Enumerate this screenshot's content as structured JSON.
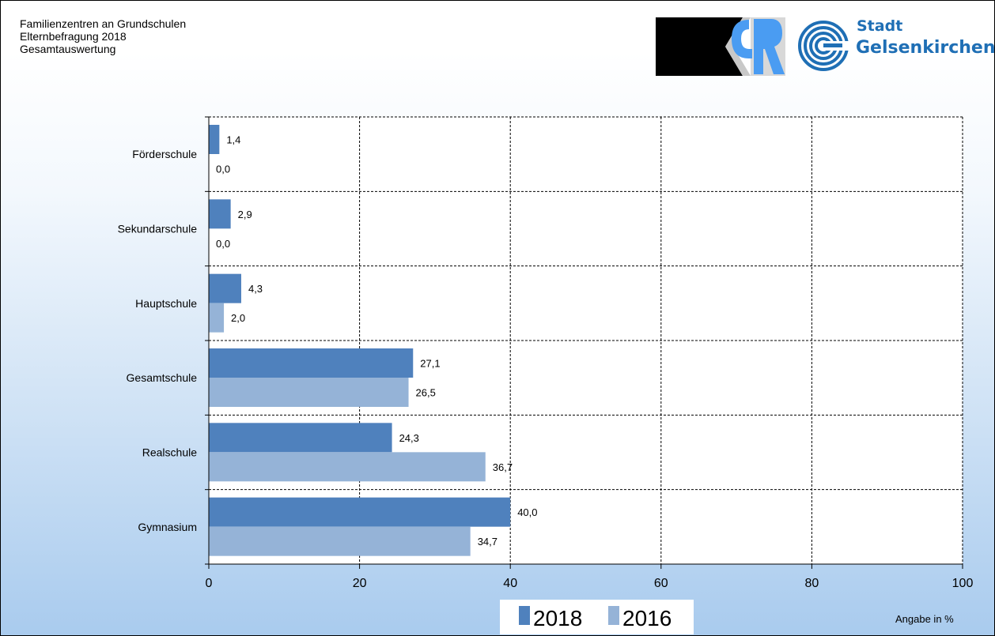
{
  "header": {
    "line1": "Familienzentren an Grundschulen",
    "line2": "Elternbefragung 2018",
    "line3": "Gesamtauswertung"
  },
  "logos": {
    "city_line1": "Stadt",
    "city_line2": "Gelsenkirchen"
  },
  "unit_label": "Angabe in %",
  "legend": {
    "series1": "2018",
    "series2": "2016"
  },
  "colors": {
    "series_2018": "#4f81bd",
    "series_2016": "#95b3d7"
  },
  "chart_data": {
    "type": "bar",
    "orientation": "horizontal",
    "categories": [
      "Förderschule",
      "Sekundarschule",
      "Hauptschule",
      "Gesamtschule",
      "Realschule",
      "Gymnasium"
    ],
    "series": [
      {
        "name": "2018",
        "values": [
          1.4,
          2.9,
          4.3,
          27.1,
          24.3,
          40.0
        ],
        "labels": [
          "1,4",
          "2,9",
          "4,3",
          "27,1",
          "24,3",
          "40,0"
        ]
      },
      {
        "name": "2016",
        "values": [
          0.0,
          0.0,
          2.0,
          26.5,
          36.7,
          34.7
        ],
        "labels": [
          "0,0",
          "0,0",
          "2,0",
          "26,5",
          "36,7",
          "34,7"
        ]
      }
    ],
    "xlim": [
      0,
      100
    ],
    "xticks": [
      0,
      20,
      40,
      60,
      80,
      100
    ],
    "xlabel": "Angabe in %",
    "grid": true,
    "legend": "bottom"
  }
}
